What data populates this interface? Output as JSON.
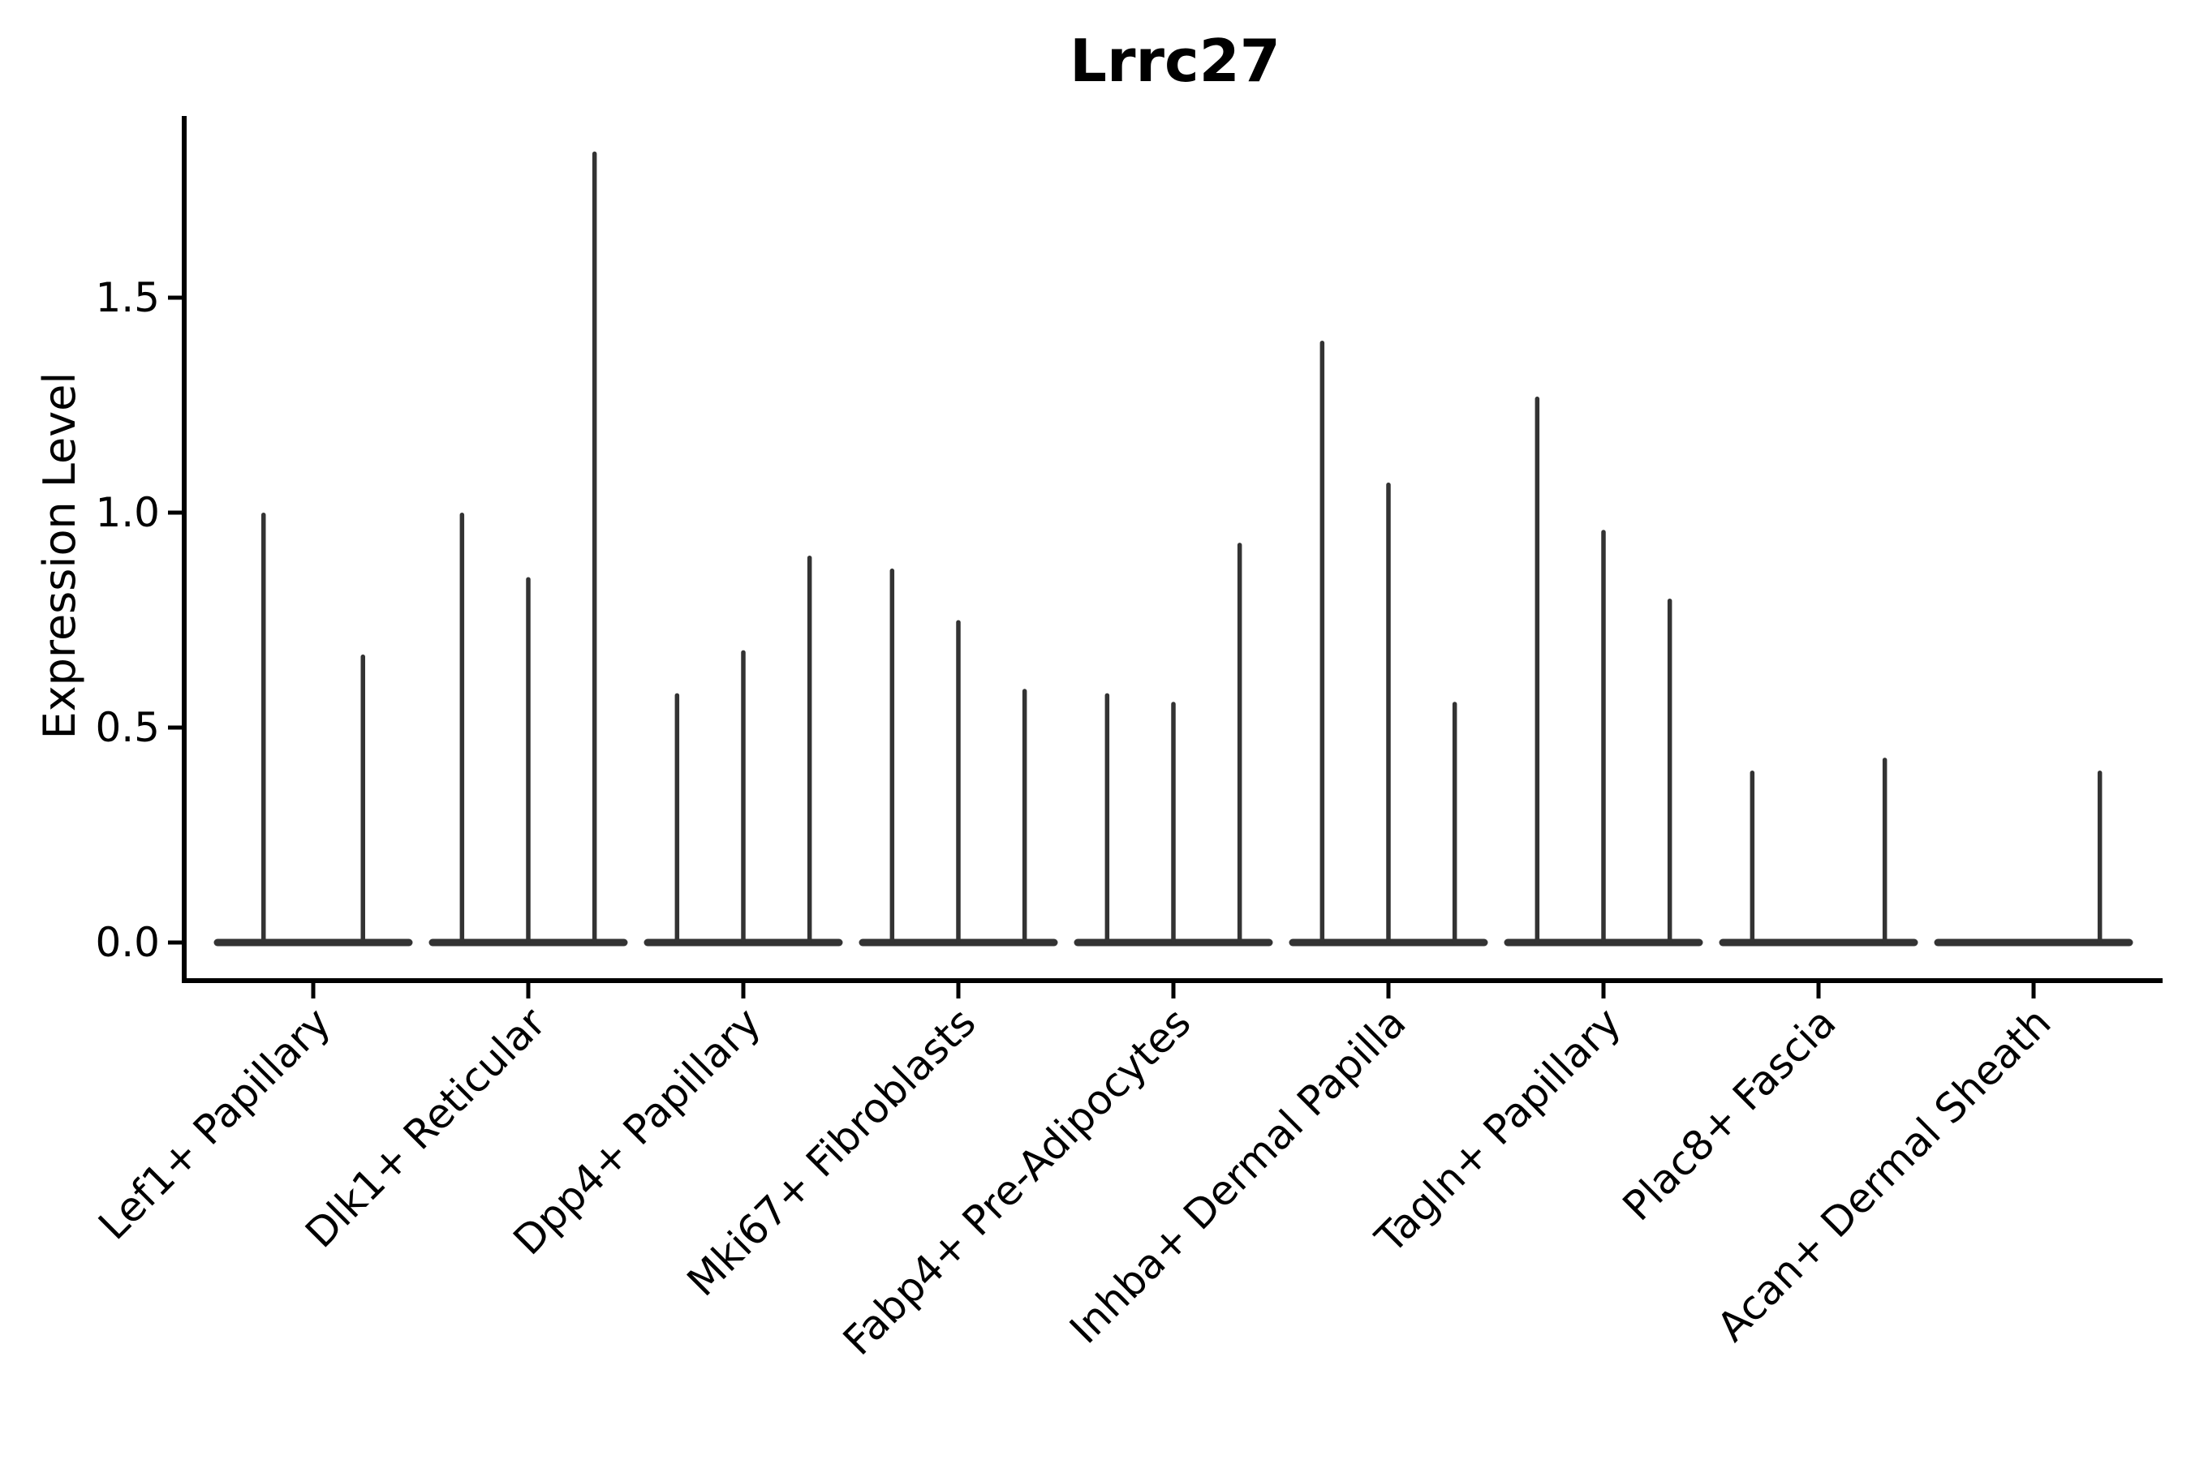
{
  "figure": {
    "title": "Lrrc27"
  },
  "chart_data": {
    "type": "violin",
    "title": "Lrrc27",
    "xlabel": "",
    "ylabel": "Expression Level",
    "ylim": [
      -0.09,
      1.92
    ],
    "yticks": [
      0.0,
      0.5,
      1.0,
      1.5
    ],
    "ytick_labels": [
      "0.0",
      "0.5",
      "1.0",
      "1.5"
    ],
    "grid": false,
    "legend_position": "none",
    "violin_color": "#333333",
    "axis_color": "#000000",
    "categories": [
      "Lef1+ Papillary",
      "Dlk1+ Reticular",
      "Dpp4+ Papillary",
      "Mki67+ Fibroblasts",
      "Fabp4+ Pre-Adipocytes",
      "Inhba+ Dermal Papilla",
      "Tagln+ Papillary",
      "Plac8+ Fascia",
      "Acan+ Dermal Sheath"
    ],
    "groups": [
      {
        "category": "Lef1+ Papillary",
        "violin_max_values": [
          1.0,
          0.67
        ]
      },
      {
        "category": "Dlk1+ Reticular",
        "violin_max_values": [
          1.0,
          0.85,
          1.84
        ]
      },
      {
        "category": "Dpp4+ Papillary",
        "violin_max_values": [
          0.58,
          0.68,
          0.9
        ]
      },
      {
        "category": "Mki67+ Fibroblasts",
        "violin_max_values": [
          0.87,
          0.75,
          0.59
        ]
      },
      {
        "category": "Fabp4+ Pre-Adipocytes",
        "violin_max_values": [
          0.58,
          0.56,
          0.93
        ]
      },
      {
        "category": "Inhba+ Dermal Papilla",
        "violin_max_values": [
          1.4,
          1.07,
          0.56
        ]
      },
      {
        "category": "Tagln+ Papillary",
        "violin_max_values": [
          1.27,
          0.96,
          0.8
        ]
      },
      {
        "category": "Plac8+ Fascia",
        "violin_max_values": [
          0.4,
          0.0,
          0.43
        ]
      },
      {
        "category": "Acan+ Dermal Sheath",
        "violin_max_values": [
          0.0,
          0.0,
          0.4
        ]
      }
    ]
  }
}
